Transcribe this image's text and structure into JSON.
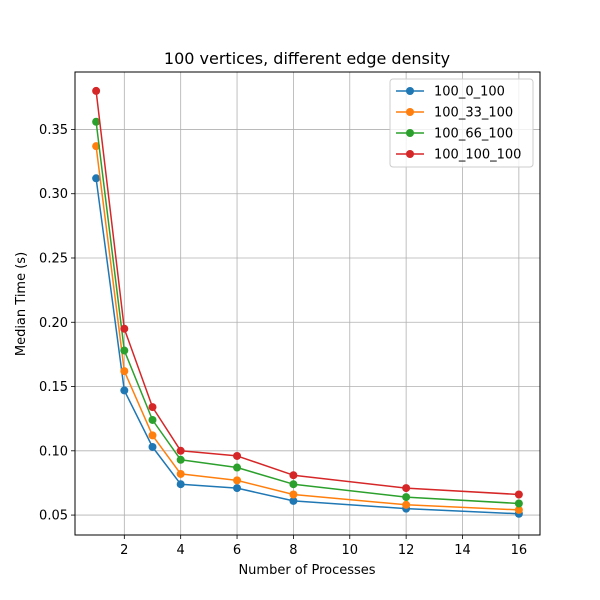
{
  "chart_data": {
    "type": "line",
    "title": "100 vertices, different edge density",
    "xlabel": "Number of Processes",
    "ylabel": "Median Time (s)",
    "xlim": [
      0.25,
      16.75
    ],
    "ylim": [
      0.0345,
      0.3947
    ],
    "xticks": [
      2,
      4,
      6,
      8,
      10,
      12,
      14,
      16
    ],
    "xtick_labels": [
      "2",
      "4",
      "6",
      "8",
      "10",
      "12",
      "14",
      "16"
    ],
    "yticks": [
      0.05,
      0.1,
      0.15,
      0.2,
      0.25,
      0.3,
      0.35
    ],
    "ytick_labels": [
      "0.05",
      "0.10",
      "0.15",
      "0.20",
      "0.25",
      "0.30",
      "0.35"
    ],
    "grid": true,
    "legend_position": "top-right",
    "x": [
      1,
      2,
      3,
      4,
      6,
      8,
      12,
      16
    ],
    "series": [
      {
        "name": "100_0_100",
        "color": "#1f77b4",
        "values": [
          0.312,
          0.147,
          0.103,
          0.074,
          0.071,
          0.061,
          0.055,
          0.051
        ]
      },
      {
        "name": "100_33_100",
        "color": "#ff7f0e",
        "values": [
          0.337,
          0.162,
          0.112,
          0.082,
          0.077,
          0.066,
          0.058,
          0.054
        ]
      },
      {
        "name": "100_66_100",
        "color": "#2ca02c",
        "values": [
          0.356,
          0.178,
          0.124,
          0.093,
          0.087,
          0.074,
          0.064,
          0.059
        ]
      },
      {
        "name": "100_100_100",
        "color": "#d62728",
        "values": [
          0.38,
          0.195,
          0.134,
          0.1,
          0.096,
          0.081,
          0.071,
          0.066
        ]
      }
    ]
  }
}
